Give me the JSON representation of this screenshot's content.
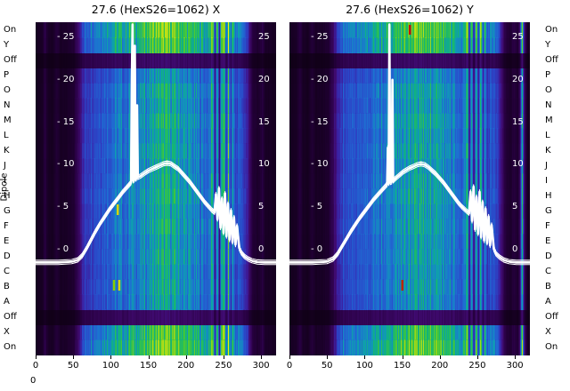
{
  "chart_data": {
    "type": "heatmap",
    "x_range": [
      0,
      320
    ],
    "row_axis_label": "Dipole",
    "row_labels": [
      "On",
      "Y",
      "Off",
      "P",
      "O",
      "N",
      "M",
      "L",
      "K",
      "J",
      "I",
      "H",
      "G",
      "F",
      "E",
      "D",
      "C",
      "B",
      "A",
      "Off",
      "X",
      "On"
    ],
    "row_gain": [
      1.05,
      1.0,
      0.3,
      0.8,
      0.86,
      0.83,
      0.87,
      0.84,
      0.86,
      0.83,
      0.85,
      0.87,
      0.84,
      0.86,
      0.83,
      0.85,
      0.82,
      0.84,
      0.81,
      0.3,
      1.0,
      1.05
    ],
    "colormap_stops": [
      [
        0.0,
        "#0e0013"
      ],
      [
        0.12,
        "#270040"
      ],
      [
        0.25,
        "#3f0a6e"
      ],
      [
        0.35,
        "#3c1e9e"
      ],
      [
        0.45,
        "#2b46c8"
      ],
      [
        0.55,
        "#1e6fd2"
      ],
      [
        0.63,
        "#0f9bb4"
      ],
      [
        0.7,
        "#12b478"
      ],
      [
        0.78,
        "#3fc63c"
      ],
      [
        0.86,
        "#8ed41e"
      ],
      [
        0.93,
        "#c8e414"
      ],
      [
        1.0,
        "#f0ee0a"
      ]
    ],
    "x_axis": {
      "ticks": [
        0,
        50,
        100,
        150,
        200,
        250,
        300
      ],
      "corner_label": "0"
    },
    "y_axis": {
      "ticks": [
        25,
        20,
        15,
        10,
        5,
        0
      ]
    },
    "plots": [
      {
        "name": "X",
        "title": "27.6 (HexS26=1062) X",
        "column_profile": [
          [
            0,
            0.04
          ],
          [
            8,
            0.05
          ],
          [
            12,
            0.13
          ],
          [
            16,
            0.05
          ],
          [
            22,
            0.04
          ],
          [
            28,
            0.11
          ],
          [
            33,
            0.05
          ],
          [
            42,
            0.06
          ],
          [
            50,
            0.09
          ],
          [
            55,
            0.2
          ],
          [
            60,
            0.38
          ],
          [
            66,
            0.5
          ],
          [
            74,
            0.55
          ],
          [
            84,
            0.58
          ],
          [
            94,
            0.61
          ],
          [
            104,
            0.64
          ],
          [
            112,
            0.66
          ],
          [
            118,
            0.62
          ],
          [
            124,
            0.68
          ],
          [
            130,
            0.71
          ],
          [
            137,
            0.67
          ],
          [
            145,
            0.72
          ],
          [
            153,
            0.75
          ],
          [
            161,
            0.78
          ],
          [
            169,
            0.8
          ],
          [
            177,
            0.79
          ],
          [
            185,
            0.77
          ],
          [
            193,
            0.74
          ],
          [
            201,
            0.71
          ],
          [
            209,
            0.69
          ],
          [
            217,
            0.67
          ],
          [
            225,
            0.65
          ],
          [
            231,
            0.62
          ],
          [
            235,
            0.9
          ],
          [
            238,
            0.34
          ],
          [
            241,
            0.82
          ],
          [
            244,
            0.3
          ],
          [
            247,
            0.78
          ],
          [
            250,
            0.95
          ],
          [
            253,
            0.4
          ],
          [
            256,
            0.88
          ],
          [
            259,
            0.45
          ],
          [
            262,
            0.75
          ],
          [
            265,
            0.5
          ],
          [
            269,
            0.6
          ],
          [
            273,
            0.53
          ],
          [
            277,
            0.49
          ],
          [
            281,
            0.43
          ],
          [
            285,
            0.22
          ],
          [
            289,
            0.11
          ],
          [
            295,
            0.07
          ],
          [
            301,
            0.13
          ],
          [
            305,
            0.06
          ],
          [
            312,
            0.05
          ],
          [
            320,
            0.04
          ]
        ],
        "line": [
          [
            0,
            -1.5
          ],
          [
            30,
            -1.5
          ],
          [
            48,
            -1.4
          ],
          [
            56,
            -1.2
          ],
          [
            62,
            -0.7
          ],
          [
            68,
            0.2
          ],
          [
            74,
            1.2
          ],
          [
            80,
            2.2
          ],
          [
            86,
            3.1
          ],
          [
            92,
            3.9
          ],
          [
            98,
            4.7
          ],
          [
            104,
            5.4
          ],
          [
            110,
            6.1
          ],
          [
            116,
            6.8
          ],
          [
            121,
            7.3
          ],
          [
            125,
            7.7
          ],
          [
            127,
            7.9
          ],
          [
            128,
            20
          ],
          [
            129,
            26.5
          ],
          [
            130,
            8.1
          ],
          [
            131,
            8.2
          ],
          [
            132,
            24
          ],
          [
            133,
            8.3
          ],
          [
            134,
            8.4
          ],
          [
            135,
            17
          ],
          [
            136,
            8.5
          ],
          [
            140,
            8.7
          ],
          [
            145,
            9.0
          ],
          [
            150,
            9.3
          ],
          [
            155,
            9.5
          ],
          [
            160,
            9.7
          ],
          [
            165,
            9.9
          ],
          [
            170,
            10.1
          ],
          [
            175,
            10.2
          ],
          [
            180,
            10.1
          ],
          [
            185,
            9.8
          ],
          [
            190,
            9.5
          ],
          [
            195,
            9.0
          ],
          [
            200,
            8.5
          ],
          [
            205,
            8.0
          ],
          [
            210,
            7.4
          ],
          [
            215,
            6.8
          ],
          [
            220,
            6.2
          ],
          [
            225,
            5.6
          ],
          [
            230,
            5.1
          ],
          [
            234,
            4.7
          ],
          [
            238,
            4.4
          ],
          [
            240,
            6.5
          ],
          [
            242,
            3.6
          ],
          [
            244,
            7.2
          ],
          [
            246,
            2.6
          ],
          [
            248,
            6.0
          ],
          [
            250,
            2.0
          ],
          [
            252,
            6.6
          ],
          [
            254,
            1.6
          ],
          [
            256,
            5.4
          ],
          [
            258,
            1.2
          ],
          [
            260,
            4.6
          ],
          [
            262,
            0.9
          ],
          [
            264,
            3.8
          ],
          [
            266,
            0.6
          ],
          [
            268,
            2.8
          ],
          [
            271,
            0.2
          ],
          [
            274,
            -0.4
          ],
          [
            278,
            -0.8
          ],
          [
            283,
            -1.1
          ],
          [
            288,
            -1.3
          ],
          [
            295,
            -1.45
          ],
          [
            305,
            -1.5
          ],
          [
            320,
            -1.5
          ]
        ],
        "marks": [
          {
            "x": 109,
            "y": 205,
            "h": 12,
            "color": "#d8d400"
          },
          {
            "x": 104,
            "y": 290,
            "h": 12,
            "color": "#88cc00"
          },
          {
            "x": 111,
            "y": 290,
            "h": 12,
            "color": "#d8d400"
          }
        ]
      },
      {
        "name": "Y",
        "title": "27.6 (HexS26=1062) Y",
        "column_profile": [
          [
            0,
            0.04
          ],
          [
            9,
            0.05
          ],
          [
            13,
            0.12
          ],
          [
            18,
            0.05
          ],
          [
            24,
            0.04
          ],
          [
            30,
            0.1
          ],
          [
            35,
            0.05
          ],
          [
            44,
            0.06
          ],
          [
            52,
            0.09
          ],
          [
            57,
            0.21
          ],
          [
            62,
            0.39
          ],
          [
            68,
            0.51
          ],
          [
            76,
            0.55
          ],
          [
            86,
            0.58
          ],
          [
            96,
            0.61
          ],
          [
            106,
            0.64
          ],
          [
            114,
            0.66
          ],
          [
            120,
            0.63
          ],
          [
            126,
            0.69
          ],
          [
            132,
            0.71
          ],
          [
            139,
            0.68
          ],
          [
            147,
            0.73
          ],
          [
            155,
            0.76
          ],
          [
            163,
            0.78
          ],
          [
            171,
            0.8
          ],
          [
            179,
            0.79
          ],
          [
            187,
            0.77
          ],
          [
            195,
            0.74
          ],
          [
            203,
            0.71
          ],
          [
            211,
            0.69
          ],
          [
            219,
            0.67
          ],
          [
            227,
            0.65
          ],
          [
            232,
            0.62
          ],
          [
            236,
            0.88
          ],
          [
            239,
            0.33
          ],
          [
            242,
            0.8
          ],
          [
            245,
            0.31
          ],
          [
            248,
            0.92
          ],
          [
            251,
            0.42
          ],
          [
            254,
            0.86
          ],
          [
            257,
            0.44
          ],
          [
            260,
            0.76
          ],
          [
            263,
            0.5
          ],
          [
            267,
            0.6
          ],
          [
            271,
            0.53
          ],
          [
            275,
            0.5
          ],
          [
            279,
            0.44
          ],
          [
            283,
            0.24
          ],
          [
            287,
            0.12
          ],
          [
            293,
            0.08
          ],
          [
            299,
            0.14
          ],
          [
            303,
            0.07
          ],
          [
            306,
            0.2
          ],
          [
            309,
            0.85
          ],
          [
            312,
            0.25
          ],
          [
            316,
            0.05
          ],
          [
            320,
            0.04
          ]
        ],
        "line": [
          [
            0,
            -1.5
          ],
          [
            30,
            -1.5
          ],
          [
            50,
            -1.4
          ],
          [
            58,
            -1.1
          ],
          [
            64,
            -0.5
          ],
          [
            70,
            0.4
          ],
          [
            76,
            1.3
          ],
          [
            82,
            2.2
          ],
          [
            88,
            3.0
          ],
          [
            94,
            3.8
          ],
          [
            100,
            4.5
          ],
          [
            106,
            5.2
          ],
          [
            112,
            5.9
          ],
          [
            118,
            6.5
          ],
          [
            123,
            7.0
          ],
          [
            127,
            7.4
          ],
          [
            130,
            7.7
          ],
          [
            131,
            12
          ],
          [
            132,
            7.8
          ],
          [
            133,
            26.5
          ],
          [
            134,
            7.9
          ],
          [
            136,
            8.0
          ],
          [
            137,
            20
          ],
          [
            138,
            8.1
          ],
          [
            140,
            8.3
          ],
          [
            144,
            8.6
          ],
          [
            148,
            8.9
          ],
          [
            152,
            9.2
          ],
          [
            156,
            9.4
          ],
          [
            160,
            9.6
          ],
          [
            165,
            9.8
          ],
          [
            170,
            10.0
          ],
          [
            175,
            10.1
          ],
          [
            180,
            10.0
          ],
          [
            185,
            9.7
          ],
          [
            190,
            9.3
          ],
          [
            195,
            8.9
          ],
          [
            200,
            8.4
          ],
          [
            205,
            7.9
          ],
          [
            210,
            7.3
          ],
          [
            215,
            6.7
          ],
          [
            220,
            6.1
          ],
          [
            225,
            5.5
          ],
          [
            230,
            5.0
          ],
          [
            235,
            4.6
          ],
          [
            239,
            4.3
          ],
          [
            241,
            6.8
          ],
          [
            243,
            3.4
          ],
          [
            245,
            7.4
          ],
          [
            247,
            2.4
          ],
          [
            249,
            6.2
          ],
          [
            251,
            1.9
          ],
          [
            253,
            6.8
          ],
          [
            255,
            1.5
          ],
          [
            257,
            5.6
          ],
          [
            259,
            1.1
          ],
          [
            261,
            4.8
          ],
          [
            263,
            0.8
          ],
          [
            265,
            3.9
          ],
          [
            267,
            0.5
          ],
          [
            269,
            2.9
          ],
          [
            272,
            0.1
          ],
          [
            275,
            -0.5
          ],
          [
            280,
            -0.9
          ],
          [
            285,
            -1.2
          ],
          [
            292,
            -1.4
          ],
          [
            302,
            -1.5
          ],
          [
            320,
            -1.5
          ]
        ],
        "marks": [
          {
            "x": 160,
            "y": 3,
            "h": 11,
            "color": "#cc1100"
          },
          {
            "x": 150,
            "y": 290,
            "h": 12,
            "color": "#bb2200"
          }
        ]
      }
    ]
  }
}
